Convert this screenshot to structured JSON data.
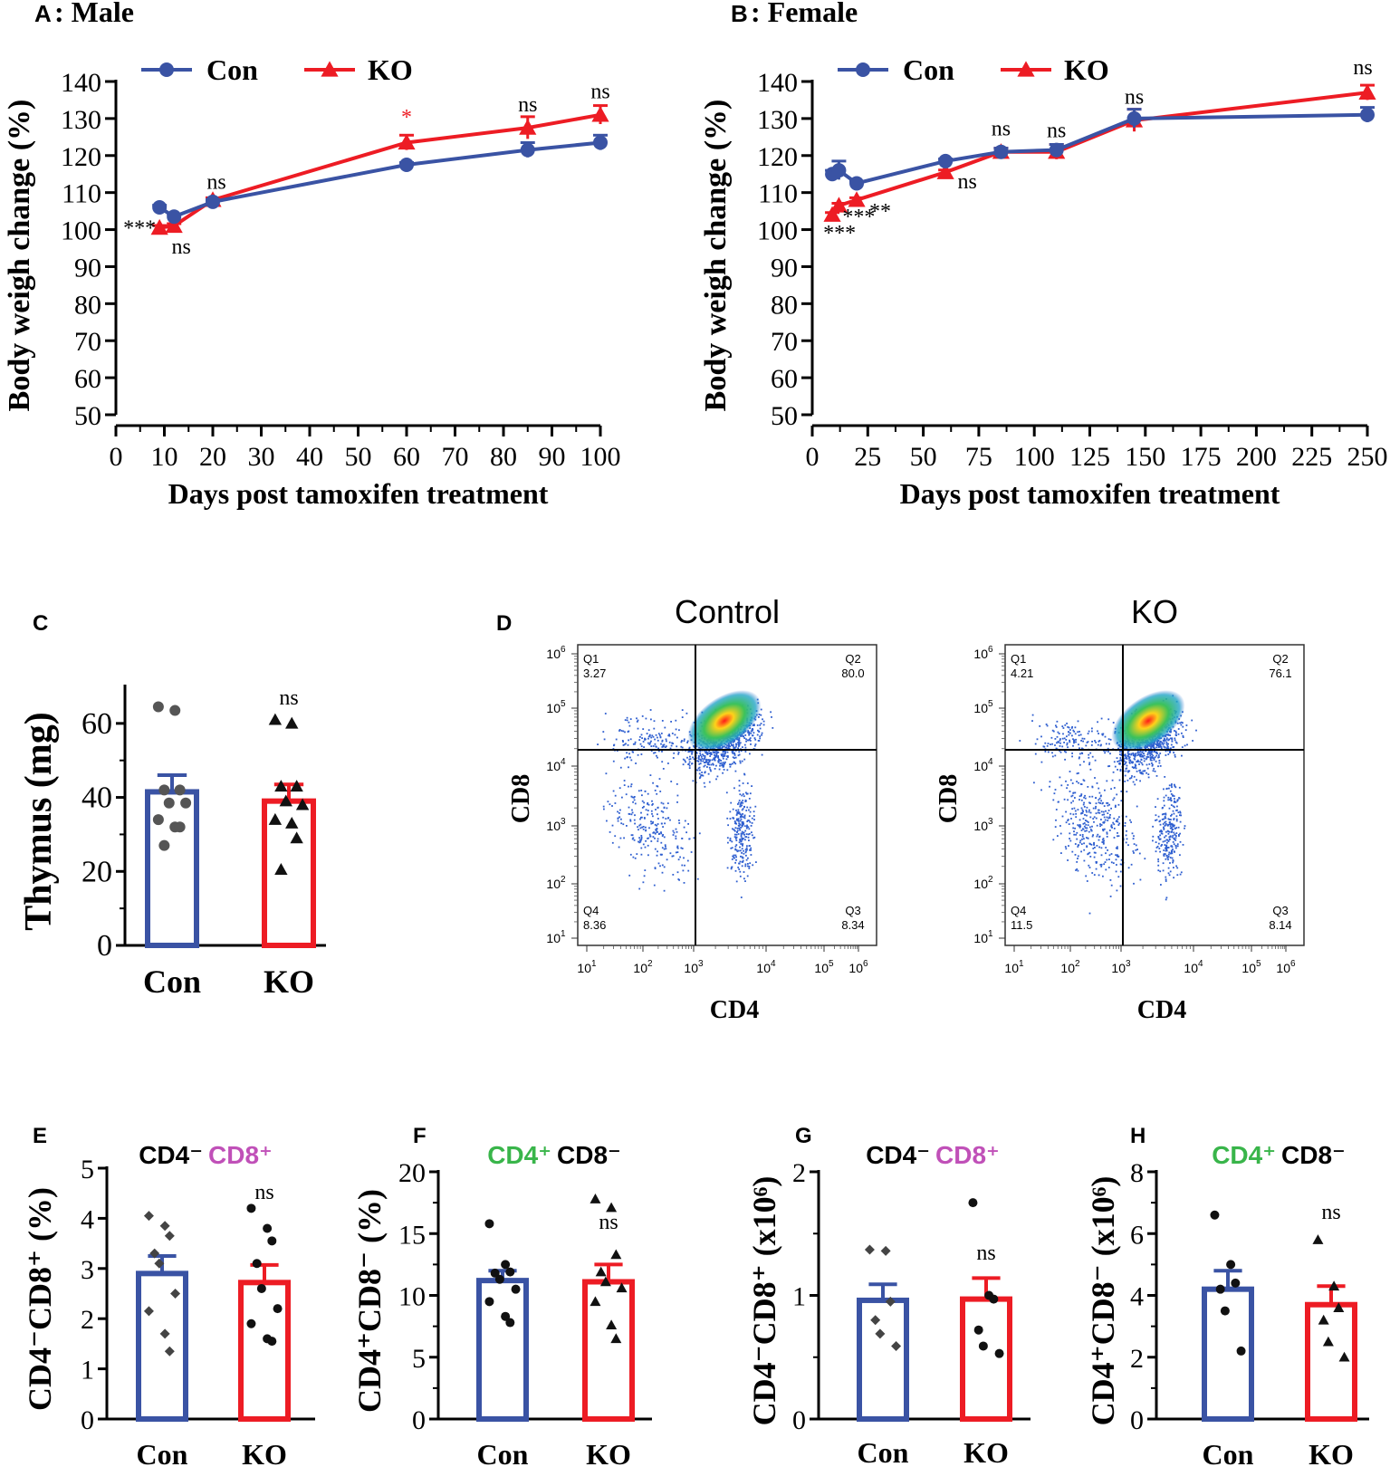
{
  "colors": {
    "con": "#3a53a4",
    "ko": "#ed1c24",
    "magenta": "#c050b8",
    "green": "#39b54a",
    "axis": "#000000",
    "dot": "#555555"
  },
  "panels": {
    "A": {
      "letter": "A",
      "title": ": Male"
    },
    "B": {
      "letter": "B",
      "title": ": Female"
    },
    "C": {
      "letter": "C"
    },
    "D": {
      "letter": "D"
    },
    "E": {
      "letter": "E",
      "title_a": "CD4⁻",
      "title_b": "CD8⁺"
    },
    "F": {
      "letter": "F",
      "title_a": "CD4⁺",
      "title_b": "CD8⁻"
    },
    "G": {
      "letter": "G",
      "title_a": "CD4⁻",
      "title_b": "CD8⁺"
    },
    "H": {
      "letter": "H",
      "title_a": "CD4⁺",
      "title_b": "CD8⁻"
    }
  },
  "legend": {
    "con": "Con",
    "ko": "KO"
  },
  "chart_data": [
    {
      "id": "A",
      "type": "line",
      "title": "A: Male",
      "xlabel": "Days post tamoxifen treatment",
      "ylabel": "Body weigh change (%)",
      "xlim": [
        0,
        100
      ],
      "ylim": [
        50,
        140
      ],
      "xticks": [
        0,
        10,
        20,
        30,
        40,
        50,
        60,
        70,
        80,
        90,
        100
      ],
      "yticks": [
        50,
        60,
        70,
        80,
        90,
        100,
        110,
        120,
        130,
        140
      ],
      "series": [
        {
          "name": "Con",
          "x": [
            9,
            12,
            20,
            60,
            85,
            100
          ],
          "y": [
            106,
            103.5,
            107.5,
            117.5,
            121.5,
            123.5
          ],
          "err": [
            0.6,
            0.6,
            0.6,
            0.6,
            2,
            2
          ]
        },
        {
          "name": "KO",
          "x": [
            9,
            12,
            20,
            60,
            85,
            100
          ],
          "y": [
            100.5,
            101,
            108,
            123.5,
            127.5,
            131
          ],
          "err": [
            0.6,
            0.6,
            0.6,
            2,
            3,
            2.5
          ]
        }
      ],
      "annotations": [
        {
          "x": 60,
          "y": 126.5,
          "text": "*",
          "color": "ko",
          "dx": 0,
          "dy": -8
        },
        {
          "x": 85,
          "y": 131,
          "text": "ns",
          "dx": 0,
          "dy": -4
        },
        {
          "x": 100,
          "y": 134,
          "text": "ns",
          "dx": 0,
          "dy": -6
        },
        {
          "x": 20,
          "y": 110,
          "text": "ns",
          "dx": 4,
          "dy": -4
        },
        {
          "x": 12,
          "y": 97,
          "text": "ns",
          "dx": 8,
          "dy": 14
        },
        {
          "x": 9,
          "y": 100.5,
          "text": "***",
          "dx": -22,
          "dy": 8
        }
      ]
    },
    {
      "id": "B",
      "type": "line",
      "title": "B: Female",
      "xlabel": "Days post tamoxifen treatment",
      "ylabel": "Body weigh change (%)",
      "xlim": [
        0,
        250
      ],
      "ylim": [
        50,
        140
      ],
      "xticks": [
        0,
        25,
        50,
        75,
        100,
        125,
        150,
        175,
        200,
        225,
        250
      ],
      "yticks": [
        50,
        60,
        70,
        80,
        90,
        100,
        110,
        120,
        130,
        140
      ],
      "series": [
        {
          "name": "Con",
          "x": [
            9,
            12,
            20,
            60,
            85,
            110,
            145,
            250
          ],
          "y": [
            115,
            116,
            112.5,
            118.5,
            121,
            121.5,
            130,
            131
          ],
          "err": [
            1,
            2.5,
            0.6,
            0.6,
            1,
            1.5,
            2.5,
            2
          ]
        },
        {
          "name": "KO",
          "x": [
            9,
            12,
            20,
            60,
            85,
            110,
            145,
            250
          ],
          "y": [
            104,
            106.5,
            108,
            115.5,
            121,
            121,
            129.5,
            137
          ],
          "err": [
            0.6,
            0.6,
            0.6,
            0.6,
            1,
            2,
            3,
            2
          ]
        }
      ],
      "annotations": [
        {
          "x": 9,
          "y": 104,
          "text": "***",
          "dx": 8,
          "dy": 28
        },
        {
          "x": 12,
          "y": 106.5,
          "text": "***",
          "dx": 22,
          "dy": 20
        },
        {
          "x": 20,
          "y": 108,
          "text": "**",
          "dx": 26,
          "dy": 20
        },
        {
          "x": 60,
          "y": 115.5,
          "text": "ns",
          "dx": 24,
          "dy": 18
        },
        {
          "x": 85,
          "y": 123.5,
          "text": "ns",
          "dx": 0,
          "dy": -8
        },
        {
          "x": 110,
          "y": 124,
          "text": "ns",
          "dx": 0,
          "dy": -4
        },
        {
          "x": 145,
          "y": 133,
          "text": "ns",
          "dx": 0,
          "dy": -4
        },
        {
          "x": 250,
          "y": 140,
          "text": "ns",
          "dx": -5,
          "dy": -8
        }
      ]
    },
    {
      "id": "C",
      "type": "bar",
      "ylabel": "Thymus (mg)",
      "categories": [
        "Con",
        "KO"
      ],
      "ylim": [
        0,
        70
      ],
      "yticks": [
        0,
        20,
        40,
        60
      ],
      "values": [
        41.5,
        39
      ],
      "errors": [
        4.5,
        4.5
      ],
      "points": [
        [
          64.5,
          63.5,
          42,
          42,
          38.5,
          38.5,
          34,
          32,
          32,
          27
        ],
        [
          61,
          60,
          43,
          43,
          39,
          38,
          34,
          33,
          29,
          20.5
        ]
      ],
      "markers": [
        "circle",
        "triangle"
      ],
      "annotation": "ns"
    },
    {
      "id": "D",
      "type": "scatter",
      "description": "flow cytometry density plots",
      "plots": [
        {
          "title": "Control",
          "xlabel": "CD4",
          "ylabel": "CD8",
          "quadrants": [
            {
              "name": "Q1",
              "value": "3.27"
            },
            {
              "name": "Q2",
              "value": "80.0"
            },
            {
              "name": "Q3",
              "value": "8.34"
            },
            {
              "name": "Q4",
              "value": "8.36"
            }
          ]
        },
        {
          "title": "KO",
          "xlabel": "CD4",
          "ylabel": "CD8",
          "quadrants": [
            {
              "name": "Q1",
              "value": "4.21"
            },
            {
              "name": "Q2",
              "value": "76.1"
            },
            {
              "name": "Q3",
              "value": "8.14"
            },
            {
              "name": "Q4",
              "value": "11.5"
            }
          ]
        }
      ],
      "ticks": [
        "10",
        "10",
        "10",
        "10",
        "10",
        "10"
      ],
      "tick_exponents": [
        "1",
        "2",
        "3",
        "4",
        "5",
        "6"
      ]
    },
    {
      "id": "E",
      "type": "bar",
      "ylabel": "CD4⁻CD8⁺ (%)",
      "categories": [
        "Con",
        "KO"
      ],
      "ylim": [
        0,
        5
      ],
      "yticks": [
        0,
        1,
        2,
        3,
        4,
        5
      ],
      "values": [
        2.9,
        2.72
      ],
      "errors": [
        0.35,
        0.35
      ],
      "points": [
        [
          4.05,
          3.85,
          3.65,
          3.3,
          3.1,
          2.5,
          2.15,
          1.7,
          1.35
        ],
        [
          4.2,
          3.8,
          3.55,
          3.1,
          2.6,
          2.2,
          1.9,
          1.6,
          1.55
        ]
      ],
      "markers": [
        "diamond",
        "circle"
      ],
      "annotation": "ns"
    },
    {
      "id": "F",
      "type": "bar",
      "ylabel": "CD4⁺CD8⁻ (%)",
      "categories": [
        "Con",
        "KO"
      ],
      "ylim": [
        0,
        20
      ],
      "yticks": [
        0,
        5,
        10,
        15,
        20
      ],
      "values": [
        11.2,
        11.1
      ],
      "errors": [
        0.8,
        1.4
      ],
      "points": [
        [
          15.8,
          12.5,
          11.9,
          11.8,
          11.3,
          10.5,
          9.5,
          8.3,
          7.8
        ],
        [
          17.8,
          17.1,
          13.3,
          11.9,
          11.1,
          10.6,
          9.5,
          7.6,
          6.5
        ]
      ],
      "markers": [
        "circle",
        "triangle"
      ],
      "annotation": "ns"
    },
    {
      "id": "G",
      "type": "bar",
      "ylabel": "CD4⁻CD8⁺ (x10⁶)",
      "categories": [
        "Con",
        "KO"
      ],
      "ylim": [
        0,
        2
      ],
      "yticks": [
        0,
        1,
        2
      ],
      "values": [
        0.96,
        0.97
      ],
      "errors": [
        0.13,
        0.17
      ],
      "points": [
        [
          1.37,
          1.36,
          0.95,
          0.8,
          0.69,
          0.59
        ],
        [
          1.75,
          1.0,
          0.97,
          0.72,
          0.59,
          0.53
        ]
      ],
      "markers": [
        "diamond",
        "circle"
      ],
      "annotation": "ns"
    },
    {
      "id": "H",
      "type": "bar",
      "ylabel": "CD4⁺CD8⁻ (x10⁶)",
      "categories": [
        "Con",
        "KO"
      ],
      "ylim": [
        0,
        8
      ],
      "yticks": [
        0,
        2,
        4,
        6,
        8
      ],
      "values": [
        4.2,
        3.7
      ],
      "errors": [
        0.6,
        0.6
      ],
      "points": [
        [
          6.6,
          5.0,
          4.4,
          4.2,
          3.5,
          2.2
        ],
        [
          5.8,
          4.3,
          3.6,
          3.2,
          2.5,
          2.0
        ]
      ],
      "markers": [
        "circle",
        "triangle"
      ],
      "annotation": "ns"
    }
  ]
}
